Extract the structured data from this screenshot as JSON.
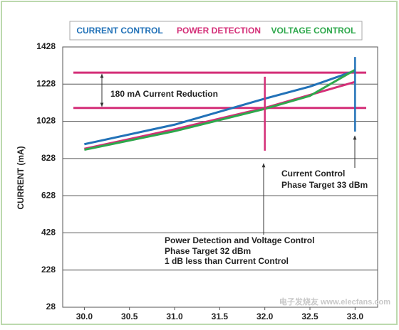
{
  "chart_data": {
    "type": "line",
    "y_label": "CURRENT (mA)",
    "x": [
      30.0,
      31.0,
      32.0,
      32.5,
      33.0
    ],
    "series": [
      {
        "name": "CURRENT CONTROL",
        "color": "#2272b8",
        "values": [
          905,
          1010,
          1150,
          1215,
          1300
        ]
      },
      {
        "name": "POWER DETECTION",
        "color": "#d42f78",
        "values": [
          880,
          985,
          1100,
          1170,
          1240
        ]
      },
      {
        "name": "VOLTAGE CONTROL",
        "color": "#2ea84c",
        "values": [
          875,
          975,
          1095,
          1165,
          1305
        ]
      }
    ],
    "xlim": [
      29.76,
      33.25
    ],
    "xticks": [
      {
        "value": 30.0,
        "label": "30.0"
      },
      30.5,
      {
        "value": 31.0,
        "label": "31.0"
      },
      31.5,
      {
        "value": 32.0,
        "label": "32.0"
      },
      32.5,
      {
        "value": 33.0,
        "label": "33.0"
      }
    ],
    "ylim": [
      28,
      1428
    ],
    "yticks": [
      28,
      228,
      428,
      628,
      828,
      1028,
      1228,
      1428
    ],
    "grid": true,
    "hlines": [
      {
        "value": 1290,
        "color": "#d42f78"
      },
      {
        "value": 1100,
        "color": "#d42f78"
      }
    ],
    "vlines": [
      {
        "x": 32.0,
        "range": [
          870,
          1268
        ],
        "color": "#d42f78"
      },
      {
        "x": 33.0,
        "range": [
          973,
          1374
        ],
        "color": "#2272b8"
      }
    ],
    "annotations": [
      "180 mA Current Reduction",
      "Current Control",
      "Phase Target 33 dBm",
      "Power Detection and Voltage Control",
      "Phase Target 32 dBm",
      "1 dB less than Current Control"
    ],
    "watermark": "电子发烧友 www.elecfans.com"
  }
}
